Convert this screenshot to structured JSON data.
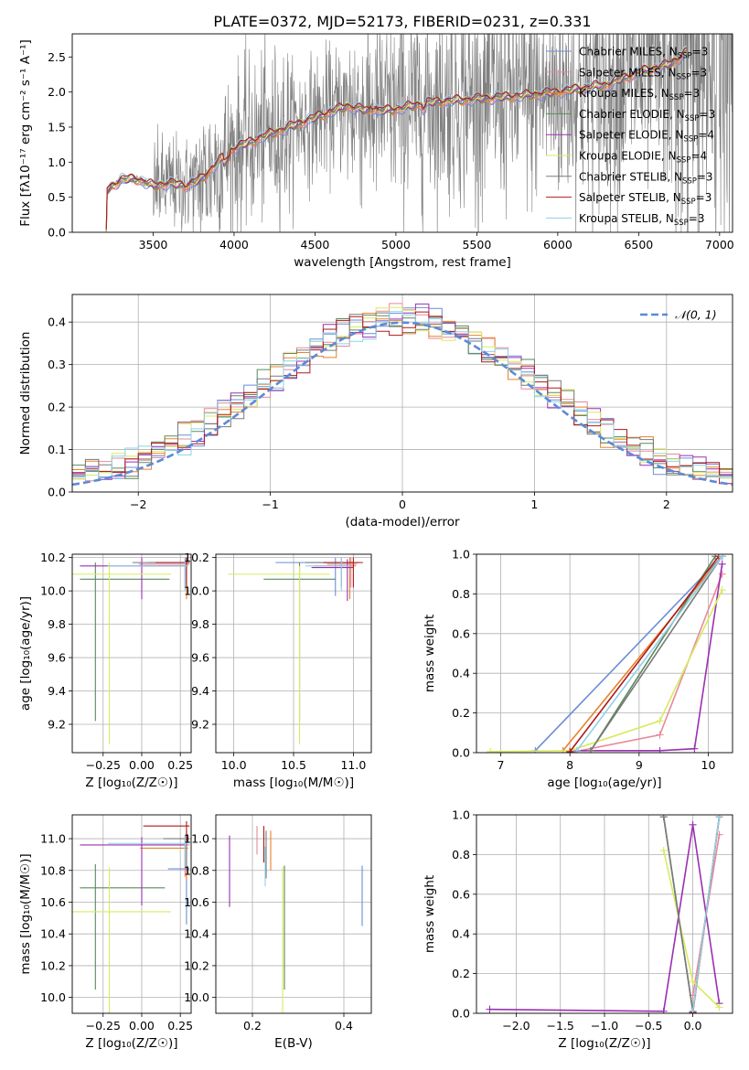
{
  "figure_title": "PLATE=0372, MJD=52173, FIBERID=0231, z=0.331",
  "colors": {
    "grid": "#b0b0b0",
    "data": "#808080",
    "series": [
      "#6a8ed6",
      "#e8899a",
      "#e8822a",
      "#5a8a5a",
      "#9a30b0",
      "#d8ea60",
      "#7a7a7a",
      "#b01818",
      "#8ed0e8"
    ]
  },
  "legend_entries": [
    {
      "label": "Chabrier MILES, N",
      "sub": "SSP",
      "suffix": "=3"
    },
    {
      "label": "Salpeter MILES, N",
      "sub": "SSP",
      "suffix": "=3"
    },
    {
      "label": "Kroupa MILES, N",
      "sub": "SSP",
      "suffix": "=3"
    },
    {
      "label": "Chabrier ELODIE, N",
      "sub": "SSP",
      "suffix": "=3"
    },
    {
      "label": "Salpeter ELODIE, N",
      "sub": "SSP",
      "suffix": "=4"
    },
    {
      "label": "Kroupa ELODIE, N",
      "sub": "SSP",
      "suffix": "=4"
    },
    {
      "label": "Chabrier STELIB, N",
      "sub": "SSP",
      "suffix": "=3"
    },
    {
      "label": "Salpeter STELIB, N",
      "sub": "SSP",
      "suffix": "=3"
    },
    {
      "label": "Kroupa STELIB, N",
      "sub": "SSP",
      "suffix": "=3"
    }
  ],
  "chart_data": [
    {
      "id": "spectrum",
      "type": "line",
      "xlabel": "wavelength [Angstrom, rest frame]",
      "ylabel": "Flux [fλ10⁻¹⁷ erg cm⁻² s⁻¹ A⁻¹]",
      "xlim": [
        3000,
        7080
      ],
      "ylim": [
        0,
        2.83
      ],
      "xticks": [
        3500,
        4000,
        4500,
        5000,
        5500,
        6000,
        6500,
        7000
      ],
      "yticks": [
        0.0,
        0.5,
        1.0,
        1.5,
        2.0,
        2.5
      ],
      "ytick_labels": [
        "0.0",
        "0.5",
        "1.0",
        "1.5",
        "2.0",
        "2.5"
      ],
      "wavelength_start": 3210,
      "data_lines_wavelength_end": 6800,
      "continuum": [
        [
          3210,
          0.0
        ],
        [
          3215,
          0.6
        ],
        [
          3300,
          0.75
        ],
        [
          3400,
          0.76
        ],
        [
          3500,
          0.66
        ],
        [
          3600,
          0.7
        ],
        [
          3700,
          0.66
        ],
        [
          3800,
          0.76
        ],
        [
          3900,
          1.0
        ],
        [
          4000,
          1.2
        ],
        [
          4200,
          1.38
        ],
        [
          4400,
          1.55
        ],
        [
          4600,
          1.72
        ],
        [
          4700,
          1.8
        ],
        [
          4850,
          1.72
        ],
        [
          5000,
          1.75
        ],
        [
          5200,
          1.85
        ],
        [
          5500,
          1.9
        ],
        [
          5800,
          1.95
        ],
        [
          6000,
          2.0
        ],
        [
          6300,
          2.1
        ],
        [
          6500,
          2.28
        ],
        [
          6700,
          2.4
        ],
        [
          6800,
          2.58
        ]
      ]
    },
    {
      "id": "residuals",
      "type": "histogram",
      "xlabel": "(data-model)/error",
      "ylabel": "Normed distribution",
      "xlim": [
        -2.5,
        2.5
      ],
      "ylim": [
        0,
        0.465
      ],
      "xticks": [
        -2,
        -1,
        0,
        1,
        2
      ],
      "xtick_labels": [
        "−2",
        "−1",
        "0",
        "1",
        "2"
      ],
      "yticks": [
        0.0,
        0.1,
        0.2,
        0.3,
        0.4
      ],
      "ytick_labels": [
        "0.0",
        "0.1",
        "0.2",
        "0.3",
        "0.4"
      ],
      "bin_width": 0.1,
      "reference_curve": {
        "name": "𝒩(0, 1)",
        "mean": 0,
        "sigma": 1
      }
    },
    {
      "id": "age-vs-Z",
      "type": "errorbar",
      "xlabel": "Z [log₁₀(Z/Z☉)]",
      "ylabel": "age  [log₁₀(age/yr)]",
      "xlim": [
        -0.45,
        0.32
      ],
      "ylim": [
        9.03,
        10.22
      ],
      "xticks": [
        -0.25,
        0.0,
        0.25
      ],
      "xtick_labels": [
        "−0.25",
        "0.00",
        "0.25"
      ],
      "yticks": [
        9.2,
        9.4,
        9.6,
        9.8,
        10.0,
        10.2
      ],
      "ytick_labels": [
        "9.2",
        "9.4",
        "9.6",
        "9.8",
        "10.0",
        "10.2"
      ],
      "points": [
        {
          "series": 0,
          "x": 0.29,
          "y": 10.17,
          "x_err": [
            0.25,
            0.02
          ],
          "y_err": [
            0.12,
            0.03
          ]
        },
        {
          "series": 1,
          "x": 0.28,
          "y": 10.16,
          "x_err": [
            0.3,
            0.03
          ],
          "y_err": [
            0.14,
            0.04
          ]
        },
        {
          "series": 2,
          "x": 0.29,
          "y": 10.15,
          "x_err": [
            0.3,
            0.01
          ],
          "y_err": [
            0.2,
            0.05
          ]
        },
        {
          "series": 3,
          "x": -0.3,
          "y": 10.07,
          "x_err": [
            0.1,
            0.48
          ],
          "y_err": [
            0.85,
            0.1
          ]
        },
        {
          "series": 4,
          "x": 0.0,
          "y": 10.15,
          "x_err": [
            0.4,
            0.28
          ],
          "y_err": [
            0.2,
            0.05
          ]
        },
        {
          "series": 5,
          "x": -0.21,
          "y": 10.1,
          "x_err": [
            0.25,
            0.4
          ],
          "y_err": [
            1.02,
            0.07
          ]
        },
        {
          "series": 6,
          "x": 0.29,
          "y": 10.17,
          "x_err": [
            0.35,
            0.02
          ],
          "y_err": [
            0.15,
            0.03
          ]
        },
        {
          "series": 7,
          "x": 0.29,
          "y": 10.17,
          "x_err": [
            0.2,
            0.02
          ],
          "y_err": [
            0.15,
            0.03
          ]
        },
        {
          "series": 8,
          "x": 0.28,
          "y": 10.15,
          "x_err": [
            0.5,
            0.02
          ],
          "y_err": [
            0.15,
            0.05
          ]
        }
      ]
    },
    {
      "id": "age-vs-mass",
      "type": "errorbar",
      "xlabel": "mass [log₁₀(M/M☉)]",
      "ylabel": "",
      "xlim": [
        9.85,
        11.15
      ],
      "ylim": [
        9.03,
        10.22
      ],
      "xticks": [
        10.0,
        10.5,
        11.0
      ],
      "xtick_labels": [
        "10.0",
        "10.5",
        "11.0"
      ],
      "yticks": [
        9.2,
        9.4,
        9.6,
        9.8,
        10.0,
        10.2
      ],
      "ytick_labels": [
        "9.2",
        "9.4",
        "9.6",
        "9.8",
        "10.0",
        "10.2"
      ],
      "points": [
        {
          "series": 0,
          "x": 10.85,
          "y": 10.17,
          "x_err": [
            0.5,
            0.2
          ],
          "y_err": [
            0.2,
            0.03
          ]
        },
        {
          "series": 1,
          "x": 10.98,
          "y": 10.16,
          "x_err": [
            0.2,
            0.05
          ],
          "y_err": [
            0.14,
            0.04
          ]
        },
        {
          "series": 2,
          "x": 10.97,
          "y": 10.15,
          "x_err": [
            0.3,
            0.05
          ],
          "y_err": [
            0.2,
            0.05
          ]
        },
        {
          "series": 3,
          "x": 10.55,
          "y": 10.07,
          "x_err": [
            0.3,
            0.3
          ],
          "y_err": [
            0.85,
            0.1
          ]
        },
        {
          "series": 4,
          "x": 10.95,
          "y": 10.14,
          "x_err": [
            0.3,
            0.05
          ],
          "y_err": [
            0.2,
            0.05
          ]
        },
        {
          "series": 5,
          "x": 10.55,
          "y": 10.1,
          "x_err": [
            0.6,
            0.25
          ],
          "y_err": [
            1.02,
            0.05
          ]
        },
        {
          "series": 6,
          "x": 10.9,
          "y": 10.17,
          "x_err": [
            0.3,
            0.1
          ],
          "y_err": [
            0.15,
            0.03
          ]
        },
        {
          "series": 7,
          "x": 11.0,
          "y": 10.17,
          "x_err": [
            0.25,
            0.08
          ],
          "y_err": [
            0.15,
            0.03
          ]
        },
        {
          "series": 8,
          "x": 10.9,
          "y": 10.15,
          "x_err": [
            0.3,
            0.08
          ],
          "y_err": [
            0.15,
            0.05
          ]
        }
      ]
    },
    {
      "id": "mass-weight-vs-age",
      "type": "line",
      "xlabel": "age  [log₁₀(age/yr)]",
      "ylabel": "mass weight",
      "xlim": [
        6.65,
        10.35
      ],
      "ylim": [
        0,
        1
      ],
      "xticks": [
        7,
        8,
        9,
        10
      ],
      "xtick_labels": [
        "7",
        "8",
        "9",
        "10"
      ],
      "yticks": [
        0.0,
        0.2,
        0.4,
        0.6,
        0.8,
        1.0
      ],
      "ytick_labels": [
        "0.0",
        "0.2",
        "0.4",
        "0.6",
        "0.8",
        "1.0"
      ],
      "series": [
        {
          "index": 0,
          "x": [
            7.5,
            10.2
          ],
          "y": [
            0.01,
            0.99
          ]
        },
        {
          "index": 1,
          "x": [
            8.0,
            9.3,
            10.2
          ],
          "y": [
            0.0,
            0.09,
            0.9
          ]
        },
        {
          "index": 2,
          "x": [
            7.9,
            10.2
          ],
          "y": [
            0.01,
            0.99
          ]
        },
        {
          "index": 3,
          "x": [
            8.3,
            10.1
          ],
          "y": [
            0.01,
            0.99
          ]
        },
        {
          "index": 4,
          "x": [
            8.0,
            9.3,
            9.8,
            10.2
          ],
          "y": [
            0.01,
            0.01,
            0.02,
            0.95
          ]
        },
        {
          "index": 5,
          "x": [
            6.85,
            8.0,
            9.3,
            10.2
          ],
          "y": [
            0.005,
            0.01,
            0.16,
            0.82
          ]
        },
        {
          "index": 6,
          "x": [
            8.3,
            10.2
          ],
          "y": [
            0.01,
            0.99
          ]
        },
        {
          "index": 7,
          "x": [
            8.0,
            10.15
          ],
          "y": [
            0.005,
            0.99
          ]
        },
        {
          "index": 8,
          "x": [
            8.1,
            10.2
          ],
          "y": [
            0.01,
            0.99
          ]
        }
      ]
    },
    {
      "id": "mass-vs-Z",
      "type": "errorbar",
      "xlabel": "Z [log₁₀(Z/Z☉)]",
      "ylabel": "mass [log₁₀(M/M☉)]",
      "xlim": [
        -0.45,
        0.32
      ],
      "ylim": [
        9.9,
        11.15
      ],
      "xticks": [
        -0.25,
        0.0,
        0.25
      ],
      "xtick_labels": [
        "−0.25",
        "0.00",
        "0.25"
      ],
      "yticks": [
        10.0,
        10.2,
        10.4,
        10.6,
        10.8,
        11.0
      ],
      "ytick_labels": [
        "10.0",
        "10.2",
        "10.4",
        "10.6",
        "10.8",
        "11.0"
      ],
      "points": [
        {
          "series": 0,
          "x": 0.29,
          "y": 10.81,
          "x_err": [
            0.12,
            0.02
          ],
          "y_err": [
            0.35,
            0.15
          ]
        },
        {
          "series": 1,
          "x": 0.28,
          "y": 10.96,
          "x_err": [
            0.3,
            0.03
          ],
          "y_err": [
            0.2,
            0.06
          ]
        },
        {
          "series": 2,
          "x": 0.29,
          "y": 10.94,
          "x_err": [
            0.3,
            0.01
          ],
          "y_err": [
            0.2,
            0.1
          ]
        },
        {
          "series": 3,
          "x": -0.3,
          "y": 10.69,
          "x_err": [
            0.1,
            0.45
          ],
          "y_err": [
            0.64,
            0.15
          ]
        },
        {
          "series": 4,
          "x": 0.0,
          "y": 10.96,
          "x_err": [
            0.4,
            0.28
          ],
          "y_err": [
            0.38,
            0.05
          ]
        },
        {
          "series": 5,
          "x": -0.21,
          "y": 10.54,
          "x_err": [
            0.25,
            0.4
          ],
          "y_err": [
            0.64,
            0.28
          ]
        },
        {
          "series": 6,
          "x": 0.29,
          "y": 11.0,
          "x_err": [
            0.15,
            0.02
          ],
          "y_err": [
            0.2,
            0.05
          ]
        },
        {
          "series": 7,
          "x": 0.29,
          "y": 11.08,
          "x_err": [
            0.28,
            0.02
          ],
          "y_err": [
            0.1,
            0.03
          ]
        },
        {
          "series": 8,
          "x": 0.28,
          "y": 10.97,
          "x_err": [
            0.5,
            0.02
          ],
          "y_err": [
            0.15,
            0.05
          ]
        }
      ]
    },
    {
      "id": "mass-vs-ebv",
      "type": "errorbar",
      "xlabel": "E(B-V)",
      "ylabel": "",
      "xlim": [
        0.12,
        0.46
      ],
      "ylim": [
        9.9,
        11.15
      ],
      "xticks": [
        0.2,
        0.4
      ],
      "xtick_labels": [
        "0.2",
        "0.4"
      ],
      "yticks": [
        10.0,
        10.2,
        10.4,
        10.6,
        10.8,
        11.0
      ],
      "ytick_labels": [
        "10.0",
        "10.2",
        "10.4",
        "10.6",
        "10.8",
        "11.0"
      ],
      "points": [
        {
          "series": 0,
          "x": 0.44,
          "y": 10.7,
          "x_err": [
            0,
            0
          ],
          "y_err": [
            0.25,
            0.13
          ]
        },
        {
          "series": 1,
          "x": 0.21,
          "y": 11.0,
          "x_err": [
            0,
            0
          ],
          "y_err": [
            0.1,
            0.08
          ]
        },
        {
          "series": 2,
          "x": 0.24,
          "y": 10.95,
          "x_err": [
            0,
            0
          ],
          "y_err": [
            0.15,
            0.1
          ]
        },
        {
          "series": 3,
          "x": 0.27,
          "y": 10.6,
          "x_err": [
            0,
            0
          ],
          "y_err": [
            0.55,
            0.23
          ]
        },
        {
          "series": 4,
          "x": 0.15,
          "y": 10.9,
          "x_err": [
            0,
            0
          ],
          "y_err": [
            0.33,
            0.12
          ]
        },
        {
          "series": 5,
          "x": 0.266,
          "y": 10.6,
          "x_err": [
            0,
            0
          ],
          "y_err": [
            0.7,
            0.22
          ]
        },
        {
          "series": 6,
          "x": 0.23,
          "y": 10.95,
          "x_err": [
            0,
            0
          ],
          "y_err": [
            0.2,
            0.1
          ]
        },
        {
          "series": 7,
          "x": 0.225,
          "y": 11.0,
          "x_err": [
            0,
            0
          ],
          "y_err": [
            0.15,
            0.08
          ]
        },
        {
          "series": 8,
          "x": 0.228,
          "y": 10.85,
          "x_err": [
            0,
            0
          ],
          "y_err": [
            0.15,
            0.1
          ]
        }
      ]
    },
    {
      "id": "mass-weight-vs-Z",
      "type": "line",
      "xlabel": "Z [log₁₀(Z/Z☉)]",
      "ylabel": "mass weight",
      "xlim": [
        -2.45,
        0.45
      ],
      "ylim": [
        0,
        1
      ],
      "xticks": [
        -2.0,
        -1.5,
        -1.0,
        -0.5,
        0.0
      ],
      "xtick_labels": [
        "−2.0",
        "−1.5",
        "−1.0",
        "−0.5",
        "0.0"
      ],
      "yticks": [
        0.0,
        0.2,
        0.4,
        0.6,
        0.8,
        1.0
      ],
      "ytick_labels": [
        "0.0",
        "0.2",
        "0.4",
        "0.6",
        "0.8",
        "1.0"
      ],
      "series": [
        {
          "index": 0,
          "x": [
            0.0,
            0.3
          ],
          "y": [
            0.01,
            0.99
          ]
        },
        {
          "index": 1,
          "x": [
            0.0,
            0.3
          ],
          "y": [
            0.09,
            0.9
          ]
        },
        {
          "index": 2,
          "x": [
            0.0,
            0.3
          ],
          "y": [
            0.01,
            0.99
          ]
        },
        {
          "index": 3,
          "x": [
            -0.33,
            0.0
          ],
          "y": [
            0.99,
            0.01
          ]
        },
        {
          "index": 4,
          "x": [
            -2.3,
            -0.33,
            0.0,
            0.3
          ],
          "y": [
            0.02,
            0.01,
            0.95,
            0.05
          ]
        },
        {
          "index": 5,
          "x": [
            -0.33,
            0.0,
            0.3
          ],
          "y": [
            0.82,
            0.16,
            0.03
          ]
        },
        {
          "index": 6,
          "x": [
            -0.33,
            0.0
          ],
          "y": [
            0.99,
            0.01
          ]
        },
        {
          "index": 7,
          "x": [
            0.0,
            0.3
          ],
          "y": [
            0.005,
            0.99
          ]
        },
        {
          "index": 8,
          "x": [
            0.0,
            0.3
          ],
          "y": [
            0.01,
            0.99
          ]
        }
      ]
    }
  ]
}
